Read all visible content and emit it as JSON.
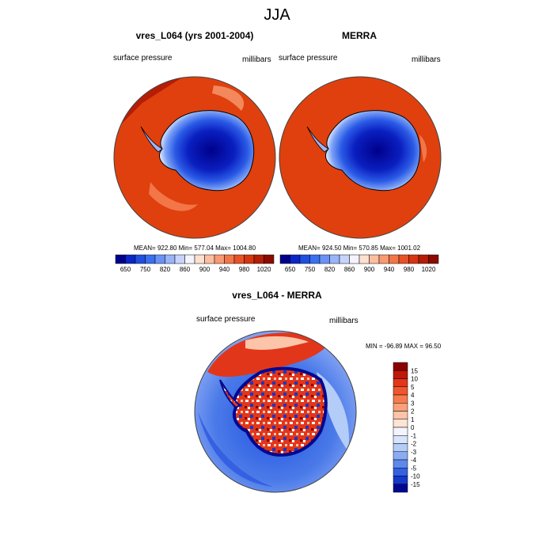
{
  "title": "JJA",
  "chart_data": [
    {
      "type": "heatmap",
      "title": "vres_L064 (yrs 2001-2004)",
      "left_label": "surface pressure",
      "right_label": "millibars",
      "stats": "MEAN= 922.80  Min= 577.04  Max= 1004.80",
      "mean": 922.8,
      "min": 577.04,
      "max": 1004.8,
      "colorbar": {
        "orientation": "horizontal",
        "levels": [
          "650",
          "750",
          "820",
          "860",
          "900",
          "940",
          "980",
          "1020"
        ],
        "colors": [
          "#00008b",
          "#0a26c9",
          "#1f4fe0",
          "#3a6ff0",
          "#6a92f5",
          "#9ab4f8",
          "#c6d4fb",
          "#f4f4ff",
          "#fde0d0",
          "#fbbea0",
          "#f89a72",
          "#f27648",
          "#e85226",
          "#d63512",
          "#b51d06",
          "#8b0a00"
        ]
      }
    },
    {
      "type": "heatmap",
      "title": "MERRA",
      "left_label": "surface pressure",
      "right_label": "millibars",
      "stats": "MEAN= 924.50  Min= 570.85  Max= 1001.02",
      "mean": 924.5,
      "min": 570.85,
      "max": 1001.02,
      "colorbar": {
        "orientation": "horizontal",
        "levels": [
          "650",
          "750",
          "820",
          "860",
          "900",
          "940",
          "980",
          "1020"
        ],
        "colors": [
          "#00008b",
          "#0a26c9",
          "#1f4fe0",
          "#3a6ff0",
          "#6a92f5",
          "#9ab4f8",
          "#c6d4fb",
          "#f4f4ff",
          "#fde0d0",
          "#fbbea0",
          "#f89a72",
          "#f27648",
          "#e85226",
          "#d63512",
          "#b51d06",
          "#8b0a00"
        ]
      }
    },
    {
      "type": "heatmap",
      "title": "vres_L064 - MERRA",
      "left_label": "surface pressure",
      "right_label": "millibars",
      "stats": "MIN = -96.89 MAX =  96.50",
      "min": -96.89,
      "max": 96.5,
      "colorbar": {
        "orientation": "vertical",
        "levels": [
          "15",
          "10",
          "5",
          "4",
          "3",
          "2",
          "1",
          "0",
          "-1",
          "-2",
          "-3",
          "-4",
          "-5",
          "-10",
          "-15"
        ],
        "colors": [
          "#8b0000",
          "#c0170a",
          "#e2361a",
          "#f0562e",
          "#f77a4e",
          "#f9a078",
          "#fcc4a8",
          "#fde4d4",
          "#f4f4ff",
          "#d8e4fb",
          "#b4ccf8",
          "#8aacf3",
          "#5e88ec",
          "#3560e2",
          "#1438cc",
          "#000890"
        ]
      }
    }
  ]
}
